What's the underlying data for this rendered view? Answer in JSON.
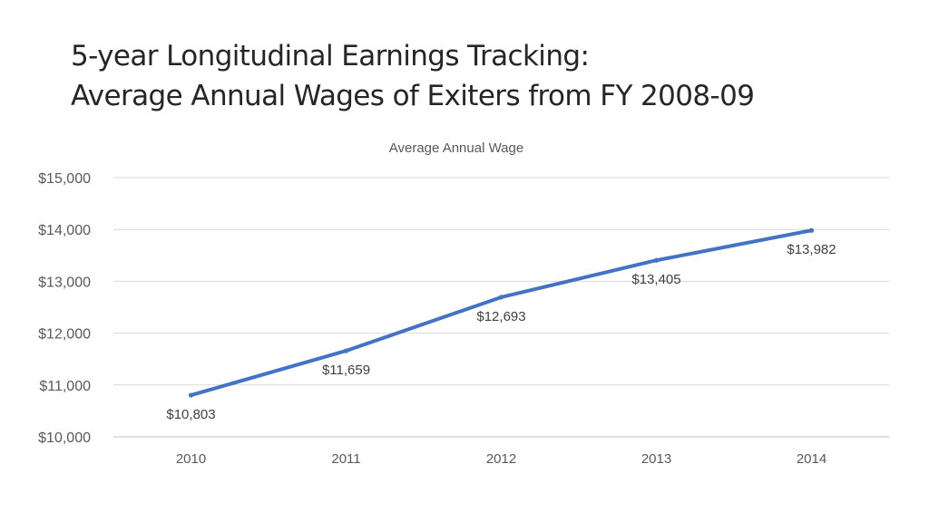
{
  "slide": {
    "title_line1": "5-year Longitudinal Earnings Tracking:",
    "title_line2": "Average Annual Wages of Exiters from FY 2008-09"
  },
  "chart_data": {
    "type": "line",
    "title": "Average Annual Wage",
    "categories": [
      "2010",
      "2011",
      "2012",
      "2013",
      "2014"
    ],
    "series": [
      {
        "values": [
          10803,
          11659,
          12693,
          13405,
          13982
        ],
        "data_labels": [
          "$10,803",
          "$11,659",
          "$12,693",
          "$13,405",
          "$13,982"
        ],
        "color": "#4472C4"
      }
    ],
    "ylim": [
      10000,
      15000
    ],
    "y_ticks": [
      {
        "value": 10000,
        "label": "$10,000"
      },
      {
        "value": 11000,
        "label": "$11,000"
      },
      {
        "value": 12000,
        "label": "$12,000"
      },
      {
        "value": 13000,
        "label": "$13,000"
      },
      {
        "value": 14000,
        "label": "$14,000"
      },
      {
        "value": 15000,
        "label": "$15,000"
      }
    ],
    "grid": true,
    "legend": "none",
    "gridline_color": "#D9D9D9",
    "axis_line_color": "#BFBFBF"
  }
}
